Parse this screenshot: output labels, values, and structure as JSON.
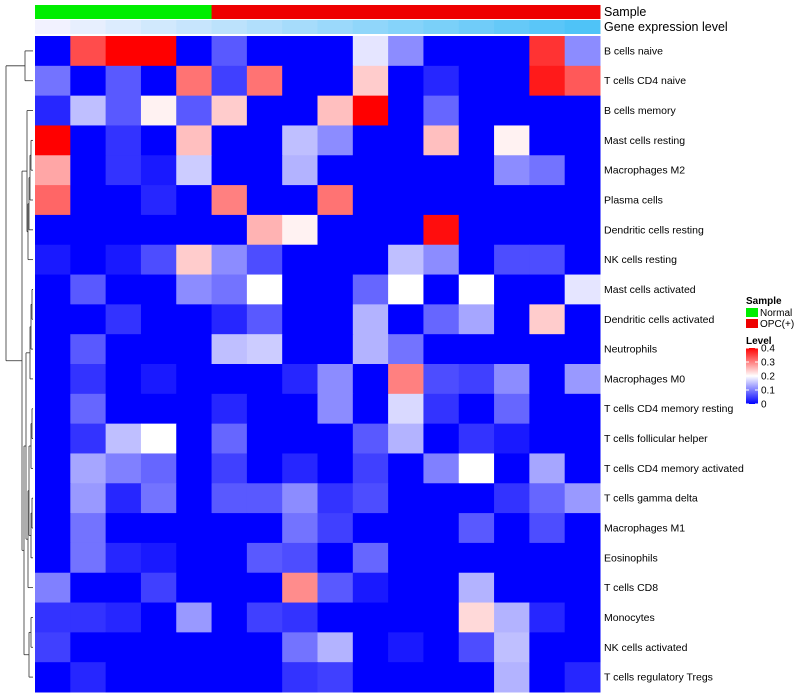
{
  "chart_data": {
    "type": "heatmap",
    "rows": [
      "B cells naive",
      "T cells CD4 naive",
      "B cells memory",
      "Mast cells resting",
      "Macrophages M2",
      "Plasma cells",
      "Dendritic cells resting",
      "NK cells resting",
      "Mast cells activated",
      "Dendritic cells activated",
      "Neutrophils",
      "Macrophages M0",
      "T cells CD4 memory resting",
      "T cells follicular helper",
      "T cells CD4 memory activated",
      "T cells gamma delta",
      "Macrophages M1",
      "Eosinophils",
      "T cells CD8",
      "Monocytes",
      "NK cells activated",
      "T cells regulatory  Tregs"
    ],
    "values": [
      [
        0.0,
        0.34,
        0.4,
        0.4,
        0.0,
        0.07,
        0.0,
        0.0,
        0.0,
        0.18,
        0.11,
        0.0,
        0.0,
        0.0,
        0.36,
        0.11
      ],
      [
        0.09,
        0.0,
        0.07,
        0.0,
        0.31,
        0.05,
        0.31,
        0.0,
        0.0,
        0.24,
        0.0,
        0.03,
        0.0,
        0.0,
        0.38,
        0.33
      ],
      [
        0.03,
        0.15,
        0.07,
        0.21,
        0.07,
        0.24,
        0.0,
        0.0,
        0.25,
        0.4,
        0.0,
        0.08,
        0.0,
        0.0,
        0.0,
        0.0
      ],
      [
        0.4,
        0.0,
        0.04,
        0.0,
        0.25,
        0.0,
        0.0,
        0.15,
        0.11,
        0.0,
        0.0,
        0.25,
        0.0,
        0.21,
        0.0,
        0.0
      ],
      [
        0.27,
        0.0,
        0.04,
        0.02,
        0.16,
        0.0,
        0.0,
        0.14,
        0.0,
        0.0,
        0.0,
        0.0,
        0.0,
        0.11,
        0.09,
        0.0
      ],
      [
        0.32,
        0.0,
        0.0,
        0.03,
        0.0,
        0.3,
        0.0,
        0.0,
        0.31,
        0.0,
        0.0,
        0.0,
        0.0,
        0.0,
        0.0,
        0.0
      ],
      [
        0.0,
        0.0,
        0.0,
        0.0,
        0.0,
        0.0,
        0.26,
        0.21,
        0.0,
        0.0,
        0.0,
        0.39,
        0.0,
        0.0,
        0.0,
        0.0
      ],
      [
        0.02,
        0.0,
        0.02,
        0.06,
        0.24,
        0.11,
        0.06,
        0.0,
        0.0,
        0.0,
        0.15,
        0.11,
        0.0,
        0.06,
        0.06,
        0.0
      ],
      [
        0.0,
        0.07,
        0.0,
        0.0,
        0.11,
        0.09,
        0.2,
        0.0,
        0.0,
        0.08,
        0.2,
        0.0,
        0.2,
        0.0,
        0.0,
        0.18
      ],
      [
        0.0,
        0.0,
        0.04,
        0.0,
        0.0,
        0.03,
        0.07,
        0.0,
        0.0,
        0.14,
        0.0,
        0.08,
        0.13,
        0.0,
        0.24,
        0.0
      ],
      [
        0.0,
        0.07,
        0.0,
        0.0,
        0.0,
        0.15,
        0.16,
        0.0,
        0.0,
        0.14,
        0.09,
        0.0,
        0.0,
        0.0,
        0.0,
        0.0
      ],
      [
        0.0,
        0.04,
        0.0,
        0.02,
        0.0,
        0.0,
        0.0,
        0.03,
        0.11,
        0.0,
        0.3,
        0.06,
        0.05,
        0.11,
        0.0,
        0.12
      ],
      [
        0.0,
        0.08,
        0.0,
        0.0,
        0.0,
        0.03,
        0.0,
        0.0,
        0.11,
        0.0,
        0.17,
        0.04,
        0.0,
        0.08,
        0.0,
        0.0
      ],
      [
        0.0,
        0.04,
        0.15,
        0.2,
        0.0,
        0.08,
        0.0,
        0.0,
        0.0,
        0.07,
        0.14,
        0.0,
        0.04,
        0.02,
        0.0,
        0.0
      ],
      [
        0.0,
        0.13,
        0.1,
        0.08,
        0.0,
        0.05,
        0.0,
        0.03,
        0.0,
        0.05,
        0.0,
        0.1,
        0.2,
        0.0,
        0.13,
        0.0
      ],
      [
        0.0,
        0.12,
        0.03,
        0.09,
        0.0,
        0.07,
        0.07,
        0.11,
        0.04,
        0.06,
        0.0,
        0.0,
        0.0,
        0.04,
        0.08,
        0.12
      ],
      [
        0.0,
        0.09,
        0.0,
        0.0,
        0.0,
        0.0,
        0.0,
        0.09,
        0.05,
        0.0,
        0.0,
        0.0,
        0.07,
        0.0,
        0.06,
        0.0
      ],
      [
        0.0,
        0.09,
        0.03,
        0.02,
        0.0,
        0.0,
        0.07,
        0.06,
        0.0,
        0.08,
        0.0,
        0.0,
        0.0,
        0.0,
        0.0,
        0.0
      ],
      [
        0.1,
        0.0,
        0.0,
        0.05,
        0.0,
        0.0,
        0.0,
        0.29,
        0.07,
        0.02,
        0.0,
        0.0,
        0.14,
        0.0,
        0.0,
        0.0
      ],
      [
        0.04,
        0.04,
        0.03,
        0.0,
        0.12,
        0.0,
        0.05,
        0.04,
        0.0,
        0.0,
        0.0,
        0.0,
        0.23,
        0.14,
        0.03,
        0.0
      ],
      [
        0.05,
        0.0,
        0.0,
        0.0,
        0.0,
        0.0,
        0.0,
        0.09,
        0.14,
        0.0,
        0.02,
        0.0,
        0.06,
        0.15,
        0.0,
        0.0
      ],
      [
        0.0,
        0.03,
        0.0,
        0.0,
        0.0,
        0.0,
        0.0,
        0.04,
        0.05,
        0.0,
        0.0,
        0.0,
        0.0,
        0.14,
        0.0,
        0.03
      ]
    ],
    "sample": [
      "Normal",
      "Normal",
      "Normal",
      "Normal",
      "Normal",
      "OPC(+)",
      "OPC(+)",
      "OPC(+)",
      "OPC(+)",
      "OPC(+)",
      "OPC(+)",
      "OPC(+)",
      "OPC(+)",
      "OPC(+)",
      "OPC(+)",
      "OPC(+)"
    ],
    "expression_level": [
      0.0,
      0.02,
      0.04,
      0.06,
      0.08,
      0.1,
      0.12,
      0.14,
      0.16,
      0.18,
      0.2,
      0.22,
      0.24,
      0.26,
      0.28,
      0.3
    ],
    "annotation_labels": [
      "Sample",
      "Gene expression level"
    ],
    "legend": {
      "sample_title": "Sample",
      "sample_entries": [
        {
          "label": "Normal",
          "color": "#00ee00"
        },
        {
          "label": "OPC(+)",
          "color": "#ee0000"
        }
      ],
      "level_title": "Level",
      "level_ticks": [
        "0.4",
        "0.3",
        "0.2",
        "0.1",
        "0"
      ],
      "level_tick_values": [
        0.4,
        0.3,
        0.2,
        0.1,
        0.0
      ],
      "placement": "right"
    },
    "color_scale": {
      "low": "#0000ff",
      "mid": "#ffffff",
      "high": "#ff0000",
      "min": 0,
      "mid_value": 0.2,
      "max": 0.4
    },
    "annotation_colors": {
      "expression_low": "#f2f2ff",
      "expression_high": "#4fc3f7"
    },
    "dendrogram": "left",
    "grid": false
  }
}
